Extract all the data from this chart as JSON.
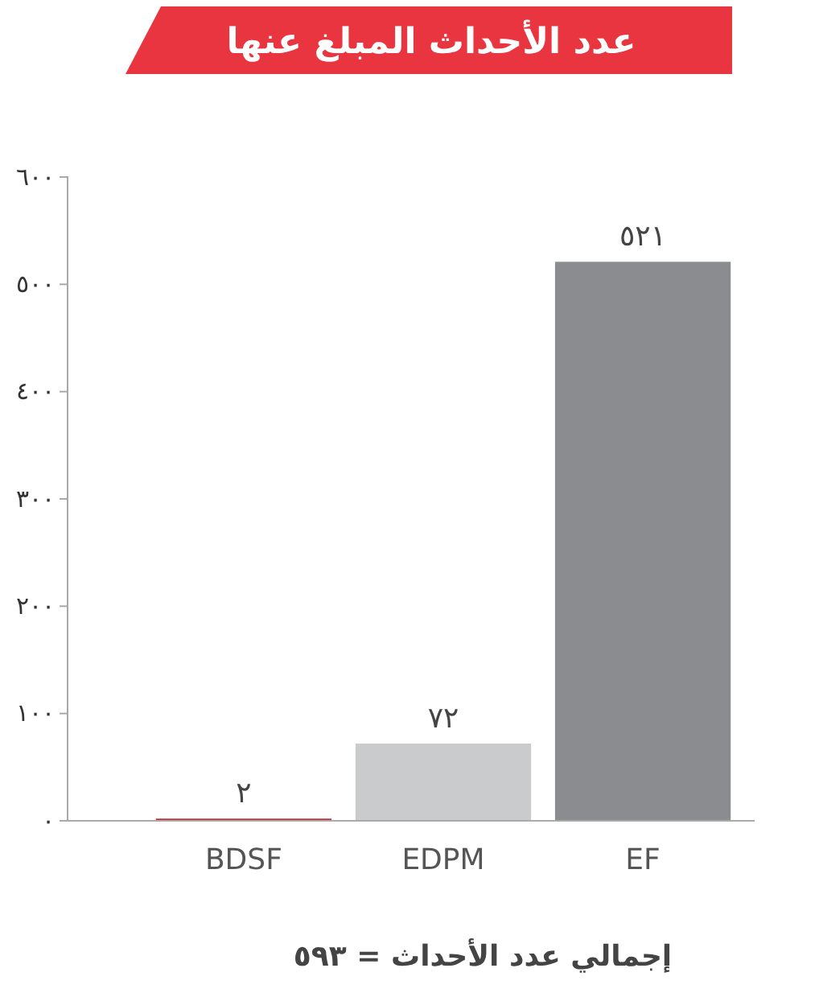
{
  "chart_data": {
    "type": "bar",
    "title": "عدد الأحداث المبلغ عنها",
    "categories": [
      "BDSF",
      "EDPM",
      "EF"
    ],
    "values": [
      2,
      72,
      521
    ],
    "colors": [
      "#c1272d",
      "#c9cbcd",
      "#8b8c8f"
    ],
    "value_labels": [
      "٢",
      "٧٢",
      "٥٢١"
    ],
    "ylim": [
      0,
      600
    ],
    "yticks": [
      {
        "value": 0,
        "label": "٠"
      },
      {
        "value": 100,
        "label": "١٠٠"
      },
      {
        "value": 200,
        "label": "٢٠٠"
      },
      {
        "value": 300,
        "label": "٣٠٠"
      },
      {
        "value": 400,
        "label": "٤٠٠"
      },
      {
        "value": 500,
        "label": "٥٠٠"
      },
      {
        "value": 600,
        "label": "٦٠٠"
      }
    ],
    "grid": false,
    "annotations": [
      "إجمالي عدد الأحداث = ٥٩٣"
    ]
  }
}
